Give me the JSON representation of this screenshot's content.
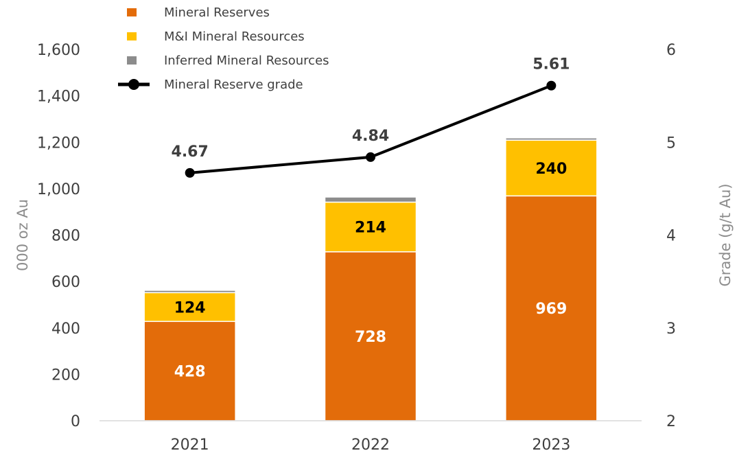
{
  "chart_data": {
    "type": "bar",
    "categories": [
      "2021",
      "2022",
      "2023"
    ],
    "series": [
      {
        "name": "Mineral Reserves",
        "type": "bar",
        "axis": "left",
        "values": [
          428,
          728,
          969
        ],
        "value_labels": [
          "428",
          "728",
          "969"
        ],
        "color": "#E36C0A",
        "label_color": "#ffffff"
      },
      {
        "name": "M&I Mineral Resources",
        "type": "bar",
        "axis": "left",
        "values": [
          124,
          214,
          240
        ],
        "value_labels": [
          "124",
          "214",
          "240"
        ],
        "color": "#FFC000",
        "label_color": "#000000"
      },
      {
        "name": "Inferred Mineral Resources",
        "type": "bar",
        "axis": "left",
        "values": [
          10,
          22,
          10
        ],
        "color": "#8C8C8C"
      },
      {
        "name": "Mineral Reserve grade",
        "type": "line",
        "axis": "right",
        "values": [
          4.67,
          4.84,
          5.61
        ],
        "value_labels": [
          "4.67",
          "4.84",
          "5.61"
        ],
        "color": "#000000"
      }
    ],
    "ylabel": "000 oz Au",
    "y2label": "Grade (g/t Au)",
    "ylim": [
      0,
      1600
    ],
    "y2lim": [
      2,
      6
    ],
    "yticks": [
      "0",
      "200",
      "400",
      "600",
      "800",
      "1,000",
      "1,200",
      "1,400",
      "1,600"
    ],
    "y2ticks": [
      "2",
      "3",
      "4",
      "5",
      "6"
    ],
    "stacked": true,
    "grid": false,
    "legend": "top-left"
  }
}
